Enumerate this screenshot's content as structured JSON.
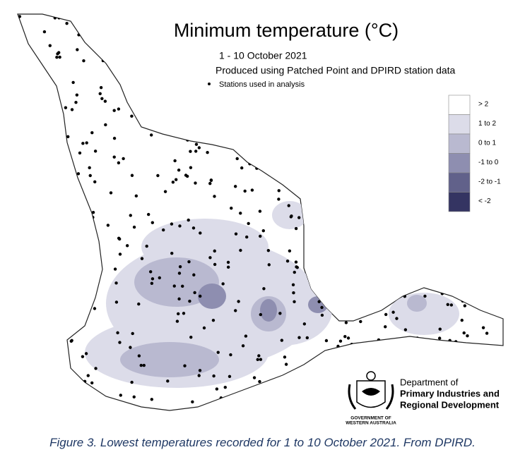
{
  "title": "Minimum temperature (°C)",
  "subtitle_lines": [
    "1 - 10 October 2021",
    "Produced using Patched Point and DPIRD station data"
  ],
  "station_note": "Stations used in analysis",
  "legend": [
    {
      "label": "> 2",
      "color": "#ffffff"
    },
    {
      "label": "1 to 2",
      "color": "#dcdce9"
    },
    {
      "label": "0 to 1",
      "color": "#b9b9d0"
    },
    {
      "label": "-1 to 0",
      "color": "#8e8eb0"
    },
    {
      "label": "-2 to -1",
      "color": "#61618a"
    },
    {
      "label": "< -2",
      "color": "#343462"
    }
  ],
  "department_lines": [
    "Department of",
    "Primary Industries and",
    "Regional Development"
  ],
  "government_lines": [
    "GOVERNMENT OF",
    "WESTERN AUSTRALIA"
  ],
  "caption": "Figure 3. Lowest temperatures recorded for 1 to 10 October 2021. From DPIRD."
}
